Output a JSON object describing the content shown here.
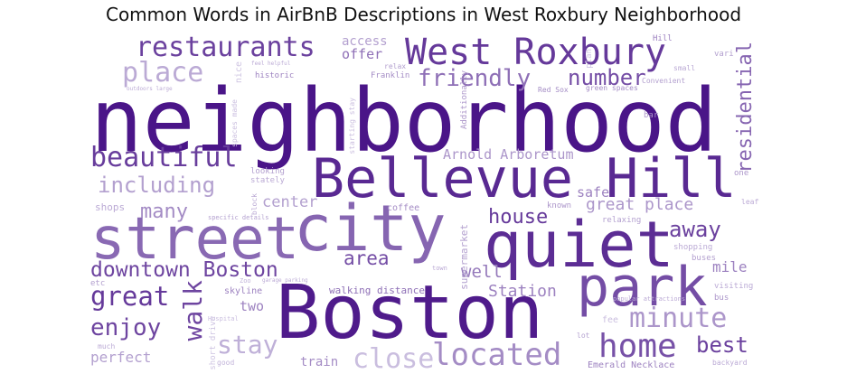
{
  "title": "Common Words in AirBnB Descriptions in West Roxbury Neighborhood",
  "cloud": {
    "words": [
      {
        "text": "neighborhood",
        "weight": 1.0
      },
      {
        "text": "Boston",
        "weight": 0.97
      },
      {
        "text": "Bellevue Hill",
        "weight": 0.9
      },
      {
        "text": "quiet",
        "weight": 0.88
      },
      {
        "text": "city",
        "weight": 0.6
      },
      {
        "text": "street",
        "weight": 0.58
      },
      {
        "text": "park",
        "weight": 0.72
      },
      {
        "text": "West Roxbury",
        "weight": 0.82
      },
      {
        "text": "restaurants",
        "weight": 0.78
      },
      {
        "text": "beautiful",
        "weight": 0.8
      },
      {
        "text": "downtown Boston",
        "weight": 0.76
      },
      {
        "text": "great",
        "weight": 0.82
      },
      {
        "text": "walk",
        "weight": 0.76
      },
      {
        "text": "enjoy",
        "weight": 0.76
      },
      {
        "text": "home",
        "weight": 0.7
      },
      {
        "text": "best",
        "weight": 0.78
      },
      {
        "text": "house",
        "weight": 0.82
      },
      {
        "text": "away",
        "weight": 0.78
      },
      {
        "text": "area",
        "weight": 0.72
      },
      {
        "text": "number",
        "weight": 0.72
      },
      {
        "text": "residential",
        "weight": 0.6
      },
      {
        "text": "friendly",
        "weight": 0.55
      },
      {
        "text": "located",
        "weight": 0.4
      },
      {
        "text": "minute",
        "weight": 0.35
      },
      {
        "text": "including",
        "weight": 0.3
      },
      {
        "text": "many",
        "weight": 0.4
      },
      {
        "text": "place",
        "weight": 0.25
      },
      {
        "text": "stay",
        "weight": 0.22
      },
      {
        "text": "close",
        "weight": 0.15
      },
      {
        "text": "offer",
        "weight": 0.55
      },
      {
        "text": "access",
        "weight": 0.3
      },
      {
        "text": "well",
        "weight": 0.5
      },
      {
        "text": "Station",
        "weight": 0.45
      },
      {
        "text": "mile",
        "weight": 0.45
      },
      {
        "text": "two",
        "weight": 0.45
      },
      {
        "text": "perfect",
        "weight": 0.3
      },
      {
        "text": "train",
        "weight": 0.4
      },
      {
        "text": "safe",
        "weight": 0.45
      },
      {
        "text": "great place",
        "weight": 0.35
      },
      {
        "text": "center",
        "weight": 0.3
      },
      {
        "text": "Arnold Arboretum",
        "weight": 0.35
      },
      {
        "text": "walking distance",
        "weight": 0.55
      },
      {
        "text": "Emerald Necklace",
        "weight": 0.45
      },
      {
        "text": "supermarket",
        "weight": 0.3
      },
      {
        "text": "coffee",
        "weight": 0.4
      },
      {
        "text": "skyline",
        "weight": 0.45
      },
      {
        "text": "shops",
        "weight": 0.25
      },
      {
        "text": "known",
        "weight": 0.35
      },
      {
        "text": "relaxing",
        "weight": 0.3
      },
      {
        "text": "buses",
        "weight": 0.3
      },
      {
        "text": "shopping",
        "weight": 0.25
      },
      {
        "text": "visiting",
        "weight": 0.25
      },
      {
        "text": "bus",
        "weight": 0.35
      },
      {
        "text": "bar",
        "weight": 0.35
      },
      {
        "text": "Hill",
        "weight": 0.45
      },
      {
        "text": "historic",
        "weight": 0.45
      },
      {
        "text": "Franklin",
        "weight": 0.4
      },
      {
        "text": "Red Sox",
        "weight": 0.4
      },
      {
        "text": "green spaces",
        "weight": 0.4
      },
      {
        "text": "Convenient",
        "weight": 0.3
      },
      {
        "text": "relax",
        "weight": 0.3
      },
      {
        "text": "looking",
        "weight": 0.3
      },
      {
        "text": "stately",
        "weight": 0.25
      },
      {
        "text": "specific details",
        "weight": 0.3
      },
      {
        "text": "etc",
        "weight": 0.3
      },
      {
        "text": "much",
        "weight": 0.25
      },
      {
        "text": "Zoo",
        "weight": 0.2
      },
      {
        "text": "town",
        "weight": 0.25
      },
      {
        "text": "lot",
        "weight": 0.3
      },
      {
        "text": "leafy",
        "weight": 0.25
      },
      {
        "text": "one",
        "weight": 0.35
      },
      {
        "text": "small",
        "weight": 0.25
      },
      {
        "text": "vari",
        "weight": 0.3
      },
      {
        "text": "popular attractions",
        "weight": 0.25
      },
      {
        "text": "feel helpful",
        "weight": 0.25
      },
      {
        "text": "outdoors large",
        "weight": 0.25
      },
      {
        "text": "backyard",
        "weight": 0.25
      },
      {
        "text": "good",
        "weight": 0.2
      },
      {
        "text": "Hospital",
        "weight": 0.15
      },
      {
        "text": "fee",
        "weight": 0.15
      },
      {
        "text": "Additionally",
        "weight": 0.35
      },
      {
        "text": "starting stay",
        "weight": 0.15
      },
      {
        "text": "spaces made",
        "weight": 0.15
      },
      {
        "text": "short drive",
        "weight": 0.12
      },
      {
        "text": "block",
        "weight": 0.25
      },
      {
        "text": "nice",
        "weight": 0.12
      },
      {
        "text": "garage parking",
        "weight": 0.25
      },
      {
        "text": "plan",
        "weight": 0.12
      }
    ]
  }
}
